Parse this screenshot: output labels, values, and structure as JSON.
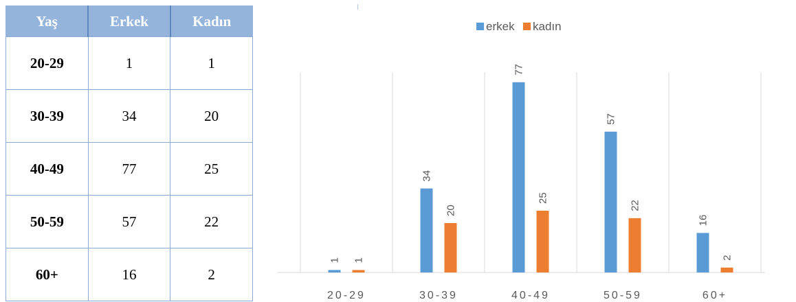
{
  "table": {
    "headers": [
      "Yaş",
      "Erkek",
      "Kadın"
    ],
    "rows": [
      [
        "20-29",
        "1",
        "1"
      ],
      [
        "30-39",
        "34",
        "20"
      ],
      [
        "40-49",
        "77",
        "25"
      ],
      [
        "50-59",
        "57",
        "22"
      ],
      [
        "60+",
        "16",
        "2"
      ]
    ]
  },
  "chart_data": {
    "type": "bar",
    "categories": [
      "20-29",
      "30-39",
      "40-49",
      "50-59",
      "60+"
    ],
    "series": [
      {
        "name": "erkek",
        "values": [
          1,
          34,
          77,
          57,
          16
        ],
        "color": "#5b9bd5"
      },
      {
        "name": "kadın",
        "values": [
          1,
          20,
          25,
          22,
          2
        ],
        "color": "#ed7d31"
      }
    ],
    "title": "",
    "xlabel": "",
    "ylabel": "",
    "ylim": [
      0,
      90
    ],
    "grid": "vertical category separators",
    "legend": "top-center",
    "data_labels": "rotated vertical above bars"
  }
}
